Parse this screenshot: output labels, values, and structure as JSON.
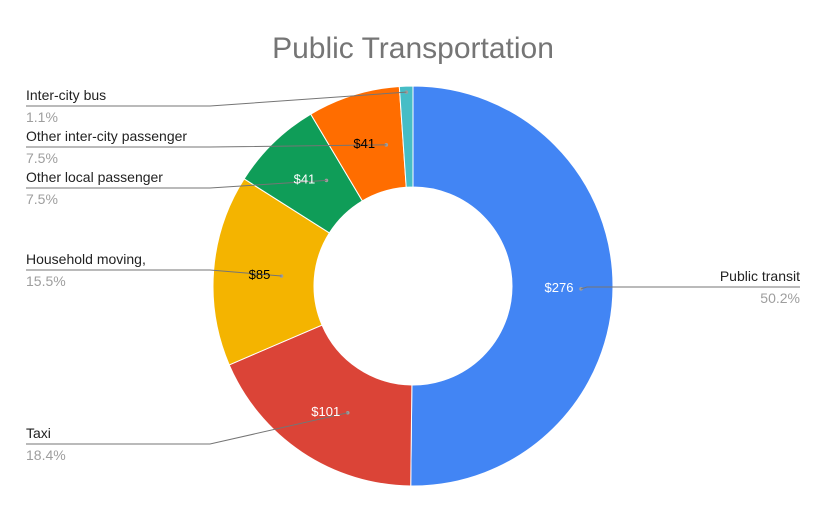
{
  "chart_data": {
    "type": "pie",
    "variant": "donut",
    "title": "Public Transportation",
    "legend": "none",
    "slices": [
      {
        "name": "Public transit",
        "value": 276,
        "value_label": "$276",
        "percent_label": "50.2%",
        "color": "#4285F4",
        "label_color": "#ffffff"
      },
      {
        "name": "Taxi",
        "value": 101,
        "value_label": "$101",
        "percent_label": "18.4%",
        "color": "#DB4437",
        "label_color": "#ffffff"
      },
      {
        "name": "Household moving,",
        "value": 85,
        "value_label": "$85",
        "percent_label": "15.5%",
        "color": "#F4B400",
        "label_color": "#000000"
      },
      {
        "name": "Other local passenger",
        "value": 41,
        "value_label": "$41",
        "percent_label": "7.5%",
        "color": "#0F9D58",
        "label_color": "#ffffff"
      },
      {
        "name": "Other inter-city passenger",
        "value": 41,
        "value_label": "$41",
        "percent_label": "7.5%",
        "color": "#FF6D00",
        "label_color": "#000000"
      },
      {
        "name": "Inter-city bus",
        "value": 6,
        "value_label": "",
        "percent_label": "1.1%",
        "color": "#46BDC6",
        "label_color": "#ffffff"
      }
    ]
  }
}
